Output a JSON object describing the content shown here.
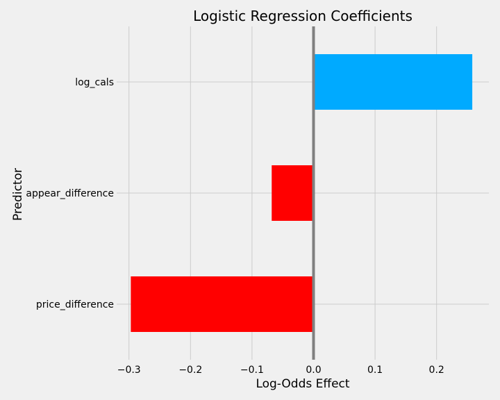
{
  "chart_data": {
    "type": "bar",
    "orientation": "horizontal",
    "title": "Logistic Regression Coefficients",
    "xlabel": "Log-Odds Effect",
    "ylabel": "Predictor",
    "categories": [
      "price_difference",
      "appear_difference",
      "log_cals"
    ],
    "values": [
      -0.297,
      -0.068,
      0.258
    ],
    "xlim": [
      -0.32,
      0.285
    ],
    "xticks": [
      -0.3,
      -0.2,
      -0.1,
      0.0,
      0.1,
      0.2
    ],
    "xtick_labels": [
      "−0.3",
      "−0.2",
      "−0.1",
      "0.0",
      "0.1",
      "0.2"
    ],
    "positive_color": "#00aaff",
    "negative_color": "#ff0000",
    "zero_line_color": "#808080",
    "grid": true,
    "legend": "none"
  }
}
